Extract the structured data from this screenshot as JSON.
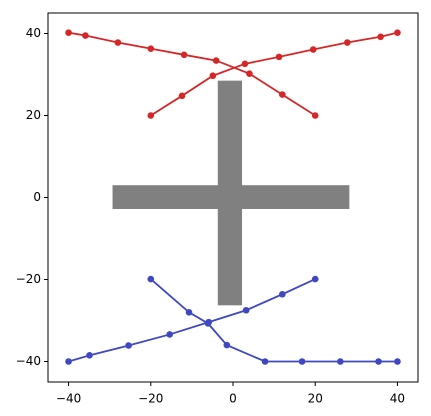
{
  "chart_data": {
    "type": "line",
    "xlim": [
      -45,
      45
    ],
    "ylim": [
      -45,
      45
    ],
    "xticks": [
      {
        "value": -40,
        "label": "−40"
      },
      {
        "value": -20,
        "label": "−20"
      },
      0,
      20,
      40
    ],
    "yticks": [
      {
        "value": -40,
        "label": "−40"
      },
      {
        "value": -20,
        "label": "−20"
      },
      0,
      20,
      40
    ],
    "rects": [
      {
        "color": "#808080",
        "x": [
          -3.7,
          2.2
        ],
        "y": [
          -26.3,
          28.5
        ]
      },
      {
        "color": "#808080",
        "x": [
          -29.3,
          28.3
        ],
        "y": [
          -2.8,
          3
        ]
      }
    ],
    "series": [
      {
        "color": "#d62728",
        "x": [
          -40,
          -35.9,
          -28,
          -20,
          -11.9,
          -4.1,
          4,
          12,
          20
        ],
        "values": [
          40.2,
          39.5,
          37.8,
          36.3,
          34.8,
          33.4,
          30.2,
          25.1,
          20
        ]
      },
      {
        "color": "#d62728",
        "x": [
          -20,
          -12.4,
          -4.9,
          2.9,
          11.2,
          19.5,
          27.8,
          35.9,
          40
        ],
        "values": [
          20,
          24.8,
          29.7,
          32.6,
          34.3,
          36.1,
          37.8,
          39.2,
          40.2
        ]
      },
      {
        "color": "#3f48c0",
        "x": [
          -40,
          -34.9,
          -25.4,
          -15.4,
          -5.9,
          3.2,
          12,
          20
        ],
        "values": [
          -40,
          -38.5,
          -36.1,
          -33.4,
          -30.4,
          -27.5,
          -23.6,
          -19.9
        ]
      },
      {
        "color": "#3f48c0",
        "x": [
          -20,
          -10.7,
          -6.1,
          -1.5,
          7.8,
          16.8,
          26.1,
          35.4,
          40
        ],
        "values": [
          -19.9,
          -28,
          -30.7,
          -36,
          -40,
          -40,
          -40,
          -40,
          -40
        ]
      }
    ]
  }
}
